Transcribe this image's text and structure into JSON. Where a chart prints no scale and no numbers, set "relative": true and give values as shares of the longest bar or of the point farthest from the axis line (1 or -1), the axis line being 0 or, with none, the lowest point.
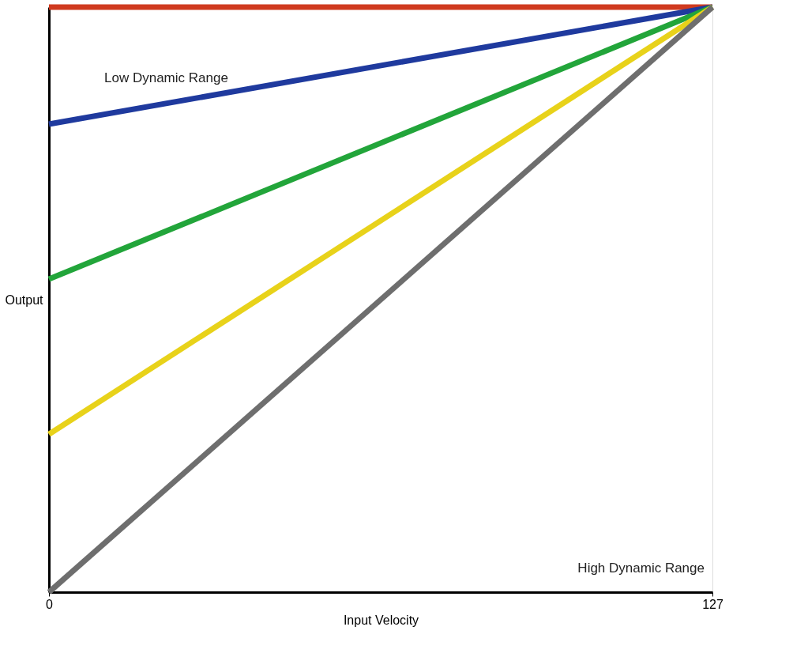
{
  "chart_data": {
    "type": "line",
    "relative": true,
    "xlabel": "Input Velocity",
    "ylabel": "Output",
    "x": [
      0,
      127
    ],
    "xlim": [
      0,
      127
    ],
    "xticks": [
      0,
      127
    ],
    "series": [
      {
        "color": "#d03a1f",
        "values": [
          1,
          1
        ]
      },
      {
        "color": "#1f3a9e",
        "values": [
          0.8,
          1
        ]
      },
      {
        "color": "#22a53a",
        "values": [
          0.535,
          1
        ]
      },
      {
        "color": "#e8d21a",
        "values": [
          0.27,
          1
        ]
      },
      {
        "color": "#6e6e6e",
        "values": [
          0,
          1
        ]
      }
    ],
    "annotations": [
      "Low Dynamic Range",
      "High Dynamic Range"
    ],
    "grid": false,
    "legend": false,
    "marker": "none",
    "line_style": "solid"
  }
}
